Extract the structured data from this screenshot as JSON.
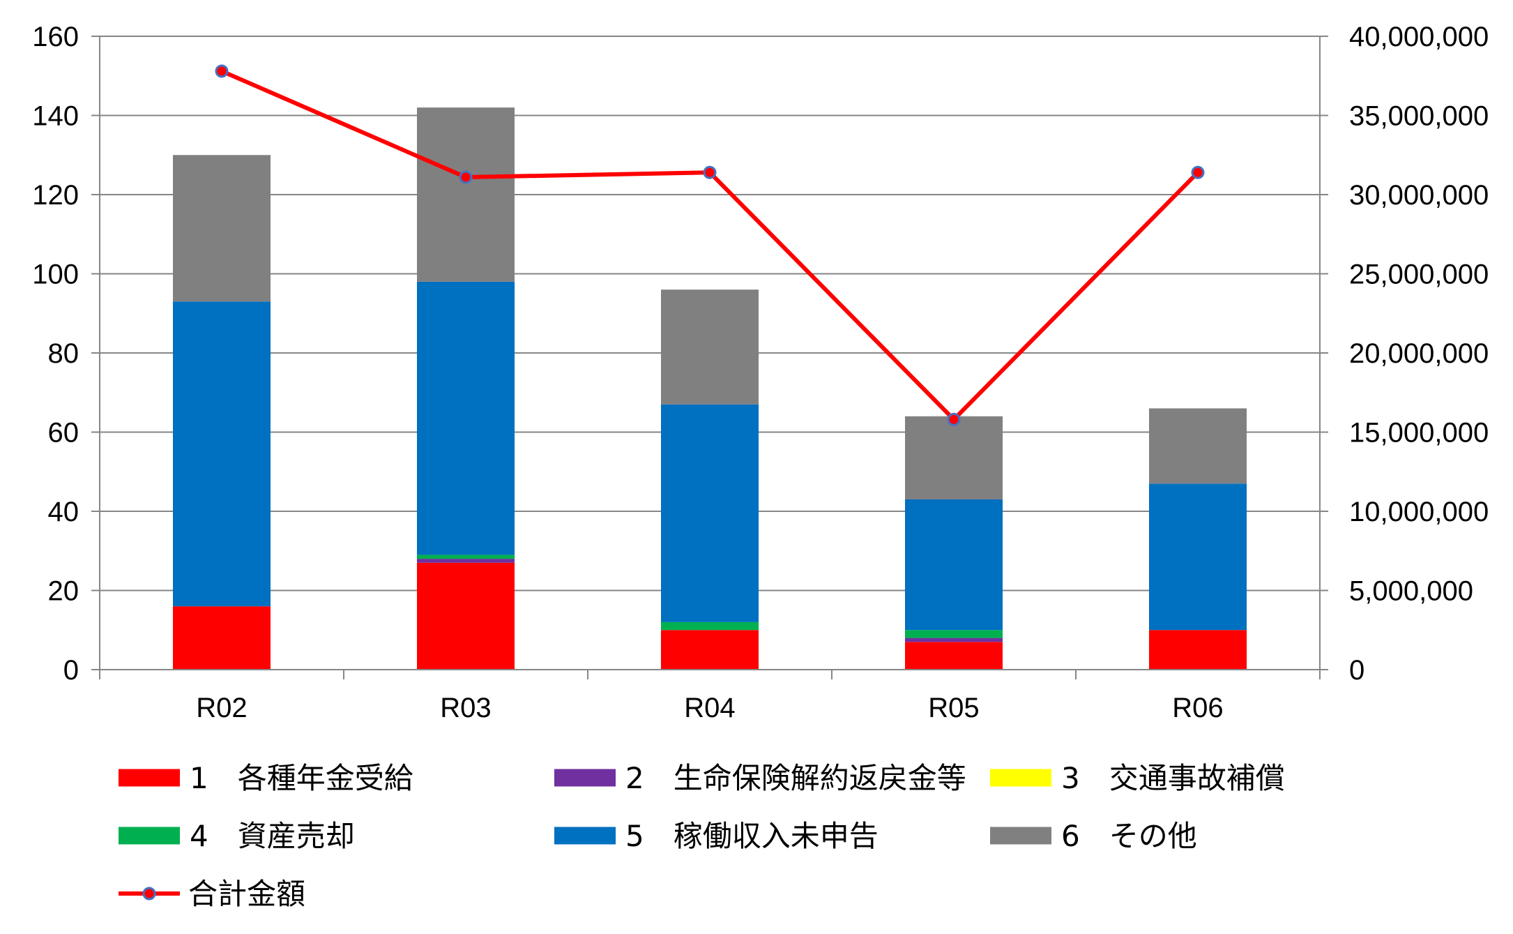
{
  "chart_data": {
    "type": "bar",
    "stacked": true,
    "categories": [
      "R02",
      "R03",
      "R04",
      "R05",
      "R06"
    ],
    "series": [
      {
        "name": "1　各種年金受給",
        "color": "#ff0000",
        "values": [
          16,
          27,
          10,
          7,
          10
        ]
      },
      {
        "name": "2　生命保険解約返戻金等",
        "color": "#7030a0",
        "values": [
          0,
          1,
          0,
          1,
          0
        ]
      },
      {
        "name": "3　交通事故補償",
        "color": "#ffff00",
        "values": [
          0,
          0,
          0,
          0,
          0
        ]
      },
      {
        "name": "4　資産売却",
        "color": "#00b050",
        "values": [
          0,
          1,
          2,
          2,
          0
        ]
      },
      {
        "name": "5　稼働収入未申告",
        "color": "#0070c0",
        "values": [
          77,
          69,
          55,
          33,
          37
        ]
      },
      {
        "name": "6　その他",
        "color": "#808080",
        "values": [
          37,
          44,
          29,
          21,
          19
        ]
      }
    ],
    "line_series": {
      "name": "合計金額",
      "color": "#ff0000",
      "marker_color": "#4472c4",
      "axis": "right",
      "values": [
        37800000,
        31100000,
        31400000,
        15800000,
        31400000
      ]
    },
    "ylim": [
      0,
      160
    ],
    "yticks": [
      "0",
      "20",
      "40",
      "60",
      "80",
      "100",
      "120",
      "140",
      "160"
    ],
    "y2lim": [
      0,
      40000000
    ],
    "y2ticks": [
      "0",
      "5,000,000",
      "10,000,000",
      "15,000,000",
      "20,000,000",
      "25,000,000",
      "30,000,000",
      "35,000,000",
      "40,000,000"
    ],
    "grid": true,
    "legend_position": "bottom"
  }
}
